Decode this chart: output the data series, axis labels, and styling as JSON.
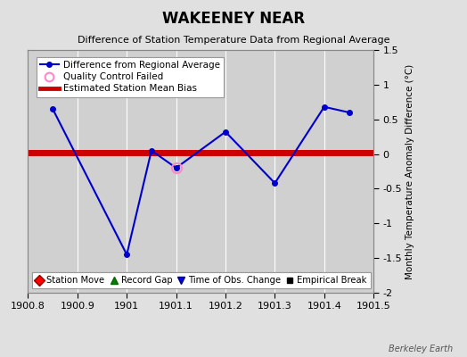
{
  "title": "WAKEENEY NEAR",
  "subtitle": "Difference of Station Temperature Data from Regional Average",
  "ylabel_right": "Monthly Temperature Anomaly Difference (°C)",
  "watermark": "Berkeley Earth",
  "xlim": [
    1900.8,
    1901.5
  ],
  "ylim": [
    -2,
    1.5
  ],
  "yticks": [
    -2,
    -1.5,
    -1,
    -0.5,
    0,
    0.5,
    1,
    1.5
  ],
  "xticks": [
    1900.8,
    1900.9,
    1901.0,
    1901.1,
    1901.2,
    1901.3,
    1901.4,
    1901.5
  ],
  "xtick_labels": [
    "1900.8",
    "1900.9",
    "1901",
    "1901.1",
    "1901.2",
    "1901.3",
    "1901.4",
    "1901.5"
  ],
  "line_x": [
    1900.85,
    1901.0,
    1901.05,
    1901.1,
    1901.2,
    1901.3,
    1901.4,
    1901.45
  ],
  "line_y": [
    0.65,
    -1.45,
    0.05,
    -0.2,
    0.32,
    -0.42,
    0.68,
    0.6
  ],
  "bias_y": 0.02,
  "qc_x": 1901.1,
  "qc_y": -0.2,
  "line_color": "#0000cc",
  "bias_color": "#cc0000",
  "qc_color": "#ff88cc",
  "bg_color": "#e0e0e0",
  "plot_bg_color": "#d0d0d0",
  "grid_color": "#ffffff",
  "legend1_items": [
    "Difference from Regional Average",
    "Quality Control Failed",
    "Estimated Station Mean Bias"
  ],
  "legend2_items": [
    "Station Move",
    "Record Gap",
    "Time of Obs. Change",
    "Empirical Break"
  ]
}
